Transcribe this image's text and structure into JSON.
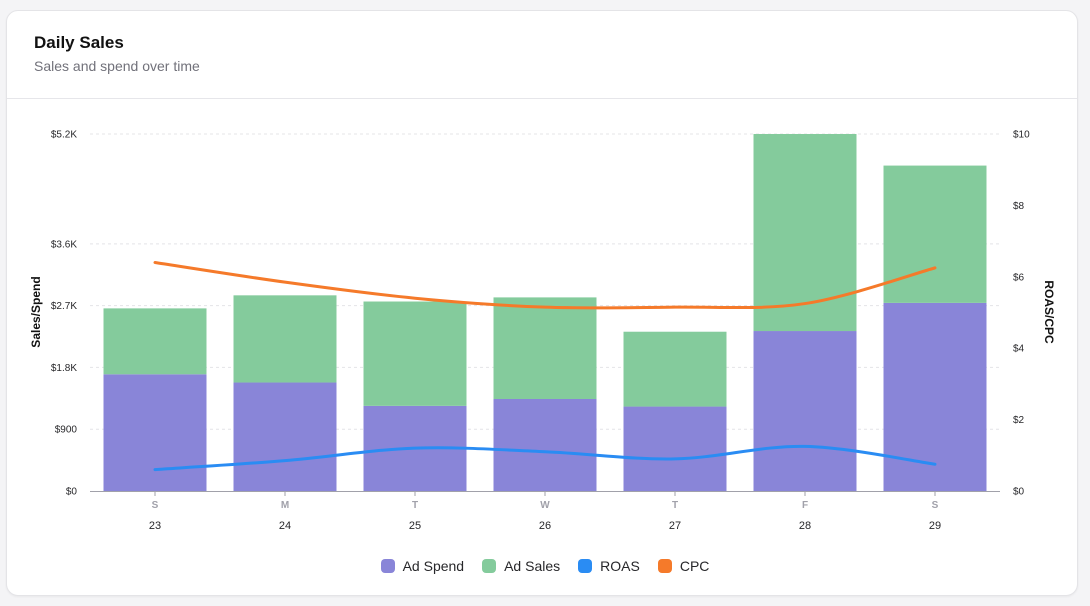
{
  "header": {
    "title": "Daily Sales",
    "subtitle": "Sales and spend over time"
  },
  "colors": {
    "ad_spend": "#8985d8",
    "ad_sales": "#84cb9c",
    "roas": "#2a8cf3",
    "cpc": "#f57a2a"
  },
  "chart_data": {
    "type": "bar",
    "title": "Daily Sales",
    "subtitle": "Sales and spend over time",
    "stacked": true,
    "days": [
      "S",
      "M",
      "T",
      "W",
      "T",
      "F",
      "S"
    ],
    "categories": [
      "23",
      "24",
      "25",
      "26",
      "27",
      "28",
      "29"
    ],
    "ylabel": "Sales/Spend",
    "y2label": "ROAS/CPC",
    "y_ticks": [
      {
        "value": 0,
        "label": "$0"
      },
      {
        "value": 900,
        "label": "$900"
      },
      {
        "value": 1800,
        "label": "$1.8K"
      },
      {
        "value": 2700,
        "label": "$2.7K"
      },
      {
        "value": 3600,
        "label": "$3.6K"
      },
      {
        "value": 5200,
        "label": "$5.2K"
      }
    ],
    "y2_ticks": [
      {
        "value": 0,
        "label": "$0"
      },
      {
        "value": 2,
        "label": "$2"
      },
      {
        "value": 4,
        "label": "$4"
      },
      {
        "value": 6,
        "label": "$6"
      },
      {
        "value": 8,
        "label": "$8"
      },
      {
        "value": 10,
        "label": "$10"
      }
    ],
    "ylim": [
      0,
      5200
    ],
    "y2lim": [
      0,
      10
    ],
    "series": [
      {
        "name": "Ad Spend",
        "kind": "bar",
        "axis": "left",
        "values": [
          1700,
          1580,
          1240,
          1340,
          1230,
          2330,
          2740
        ]
      },
      {
        "name": "Ad Sales",
        "kind": "bar",
        "axis": "left",
        "values": [
          960,
          1270,
          1520,
          1480,
          1090,
          2870,
          2000
        ]
      },
      {
        "name": "ROAS",
        "kind": "line",
        "axis": "right",
        "values": [
          0.6,
          0.85,
          1.2,
          1.1,
          0.9,
          1.25,
          0.75
        ]
      },
      {
        "name": "CPC",
        "kind": "line",
        "axis": "right",
        "values": [
          6.4,
          5.85,
          5.4,
          5.15,
          5.15,
          5.25,
          6.25
        ]
      }
    ],
    "legend": [
      "Ad Spend",
      "Ad Sales",
      "ROAS",
      "CPC"
    ],
    "legend_position": "bottom-center",
    "grid": true
  }
}
